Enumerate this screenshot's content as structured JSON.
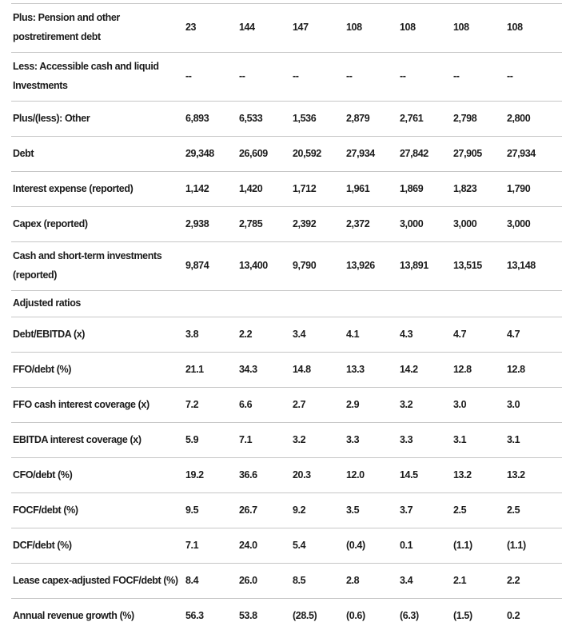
{
  "colors": {
    "text": "#1b1b1b",
    "divider": "#c6c6c6",
    "background": "#ffffff"
  },
  "table": {
    "value_columns": 7,
    "empty_placeholder": "--",
    "rows": [
      {
        "type": "data",
        "tall": true,
        "label": "Plus: Pension and other postretirement debt",
        "values": [
          "23",
          "144",
          "147",
          "108",
          "108",
          "108",
          "108"
        ]
      },
      {
        "type": "data",
        "tall": true,
        "label": "Less: Accessible cash and liquid Investments",
        "values": [
          "--",
          "--",
          "--",
          "--",
          "--",
          "--",
          "--"
        ]
      },
      {
        "type": "data",
        "tall": false,
        "label": "Plus/(less): Other",
        "values": [
          "6,893",
          "6,533",
          "1,536",
          "2,879",
          "2,761",
          "2,798",
          "2,800"
        ]
      },
      {
        "type": "data",
        "tall": false,
        "label": "Debt",
        "values": [
          "29,348",
          "26,609",
          "20,592",
          "27,934",
          "27,842",
          "27,905",
          "27,934"
        ]
      },
      {
        "type": "data",
        "tall": false,
        "label": "Interest expense (reported)",
        "values": [
          "1,142",
          "1,420",
          "1,712",
          "1,961",
          "1,869",
          "1,823",
          "1,790"
        ]
      },
      {
        "type": "data",
        "tall": false,
        "label": "Capex (reported)",
        "values": [
          "2,938",
          "2,785",
          "2,392",
          "2,372",
          "3,000",
          "3,000",
          "3,000"
        ]
      },
      {
        "type": "data",
        "tall": true,
        "label": "Cash and short-term investments (reported)",
        "values": [
          "9,874",
          "13,400",
          "9,790",
          "13,926",
          "13,891",
          "13,515",
          "13,148"
        ]
      },
      {
        "type": "section",
        "label": "Adjusted ratios"
      },
      {
        "type": "data",
        "tall": false,
        "label": "Debt/EBITDA (x)",
        "values": [
          "3.8",
          "2.2",
          "3.4",
          "4.1",
          "4.3",
          "4.7",
          "4.7"
        ]
      },
      {
        "type": "data",
        "tall": false,
        "label": "FFO/debt (%)",
        "values": [
          "21.1",
          "34.3",
          "14.8",
          "13.3",
          "14.2",
          "12.8",
          "12.8"
        ]
      },
      {
        "type": "data",
        "tall": false,
        "label": "FFO cash interest coverage (x)",
        "values": [
          "7.2",
          "6.6",
          "2.7",
          "2.9",
          "3.2",
          "3.0",
          "3.0"
        ]
      },
      {
        "type": "data",
        "tall": false,
        "label": "EBITDA interest coverage (x)",
        "values": [
          "5.9",
          "7.1",
          "3.2",
          "3.3",
          "3.3",
          "3.1",
          "3.1"
        ]
      },
      {
        "type": "data",
        "tall": false,
        "label": "CFO/debt (%)",
        "values": [
          "19.2",
          "36.6",
          "20.3",
          "12.0",
          "14.5",
          "13.2",
          "13.2"
        ]
      },
      {
        "type": "data",
        "tall": false,
        "label": "FOCF/debt (%)",
        "values": [
          "9.5",
          "26.7",
          "9.2",
          "3.5",
          "3.7",
          "2.5",
          "2.5"
        ]
      },
      {
        "type": "data",
        "tall": false,
        "label": "DCF/debt (%)",
        "values": [
          "7.1",
          "24.0",
          "5.4",
          "(0.4)",
          "0.1",
          "(1.1)",
          "(1.1)"
        ]
      },
      {
        "type": "data",
        "tall": false,
        "label": "Lease capex-adjusted FOCF/debt (%)",
        "values": [
          "8.4",
          "26.0",
          "8.5",
          "2.8",
          "3.4",
          "2.1",
          "2.2"
        ]
      },
      {
        "type": "data",
        "tall": false,
        "last": true,
        "label": "Annual revenue growth (%)",
        "values": [
          "56.3",
          "53.8",
          "(28.5)",
          "(0.6)",
          "(6.3)",
          "(1.5)",
          "0.2"
        ]
      }
    ]
  }
}
